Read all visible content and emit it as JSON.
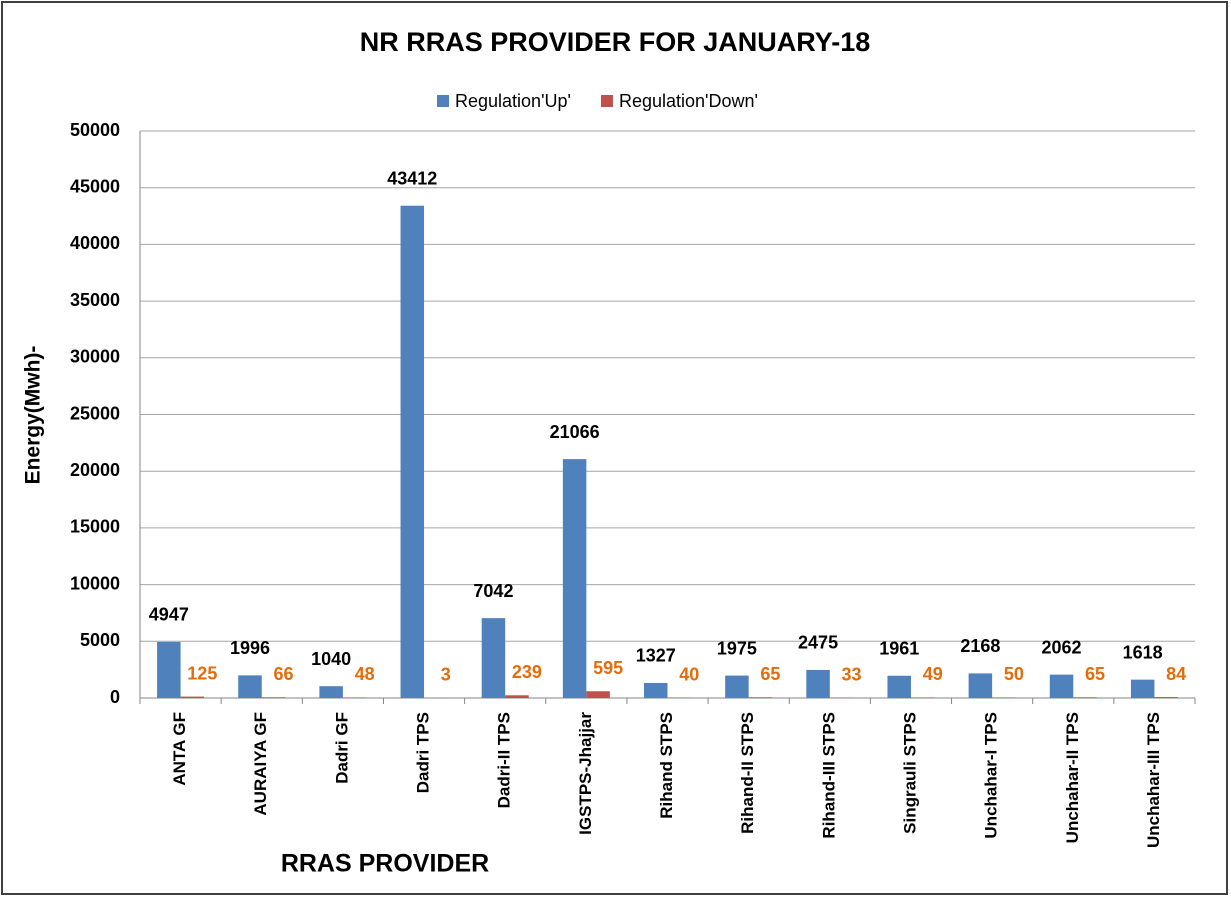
{
  "chart_data": {
    "type": "bar",
    "title": "NR RRAS PROVIDER FOR JANUARY-18",
    "x_label": "RRAS PROVIDER",
    "y_label": "Energy(Mwh)-",
    "categories": [
      "ANTA GF",
      "AURAIYA GF",
      "Dadri GF",
      "Dadri TPS",
      "Dadri-II TPS",
      "IGSTPS-Jhajjar",
      "Rihand STPS",
      "Rihand-II STPS",
      "Rihand-III STPS",
      "Singrauli STPS",
      "Unchahar-I TPS",
      "Unchahar-II TPS",
      "Unchahar-III TPS"
    ],
    "series": [
      {
        "name": "Regulation'Up'",
        "color": "#4f81bd",
        "label_color": "#000000",
        "values": [
          4947,
          1996,
          1040,
          43412,
          7042,
          21066,
          1327,
          1975,
          2475,
          1961,
          2168,
          2062,
          1618
        ]
      },
      {
        "name": "Regulation'Down'",
        "color": "#c0504d",
        "label_color": "#e46c0a",
        "values": [
          125,
          66,
          48,
          3,
          239,
          595,
          40,
          65,
          33,
          49,
          50,
          65,
          84
        ]
      }
    ],
    "ylim": [
      0,
      50000
    ],
    "yticks": [
      0,
      5000,
      10000,
      15000,
      20000,
      25000,
      30000,
      35000,
      40000,
      45000,
      50000
    ],
    "grid": true,
    "legend": "top"
  }
}
